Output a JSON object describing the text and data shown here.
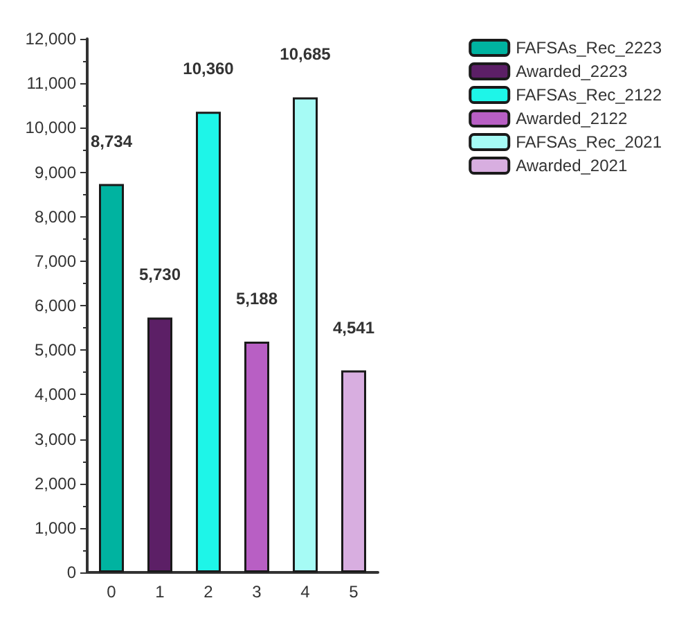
{
  "chart_data": {
    "type": "bar",
    "categories": [
      "0",
      "1",
      "2",
      "3",
      "4",
      "5"
    ],
    "series": [
      {
        "name": "FAFSAs_Rec_2223",
        "color": "#00b3a0",
        "values": [
          8734,
          null,
          null,
          null,
          null,
          null
        ],
        "value_labels": [
          "8,734",
          null,
          null,
          null,
          null,
          null
        ]
      },
      {
        "name": "Awarded_2223",
        "color": "#5c1f66",
        "values": [
          null,
          5730,
          null,
          null,
          null,
          null
        ],
        "value_labels": [
          null,
          "5,730",
          null,
          null,
          null,
          null
        ]
      },
      {
        "name": "FAFSAs_Rec_2122",
        "color": "#1ef5e8",
        "values": [
          null,
          null,
          10360,
          null,
          null,
          null
        ],
        "value_labels": [
          null,
          null,
          "10,360",
          null,
          null,
          null
        ]
      },
      {
        "name": "Awarded_2122",
        "color": "#b85fc4",
        "values": [
          null,
          null,
          null,
          5188,
          null,
          null
        ],
        "value_labels": [
          null,
          null,
          null,
          "5,188",
          null,
          null
        ]
      },
      {
        "name": "FAFSAs_Rec_2021",
        "color": "#a6fbf5",
        "values": [
          null,
          null,
          null,
          null,
          10685,
          null
        ],
        "value_labels": [
          null,
          null,
          null,
          null,
          "10,685",
          null
        ]
      },
      {
        "name": "Awarded_2021",
        "color": "#d8aee0",
        "values": [
          null,
          null,
          null,
          null,
          null,
          4541
        ],
        "value_labels": [
          null,
          null,
          null,
          null,
          null,
          "4,541"
        ]
      }
    ],
    "ylim": [
      0,
      12000
    ],
    "yticks": [
      {
        "value": 0,
        "label": "0"
      },
      {
        "value": 1000,
        "label": "1,000"
      },
      {
        "value": 2000,
        "label": "2,000"
      },
      {
        "value": 3000,
        "label": "3,000"
      },
      {
        "value": 4000,
        "label": "4,000"
      },
      {
        "value": 5000,
        "label": "5,000"
      },
      {
        "value": 6000,
        "label": "6,000"
      },
      {
        "value": 7000,
        "label": "7,000"
      },
      {
        "value": 8000,
        "label": "8,000"
      },
      {
        "value": 9000,
        "label": "9,000"
      },
      {
        "value": 10000,
        "label": "10,000"
      },
      {
        "value": 11000,
        "label": "11,000"
      },
      {
        "value": 12000,
        "label": "12,000"
      }
    ],
    "grid": false,
    "legend": "top right"
  }
}
